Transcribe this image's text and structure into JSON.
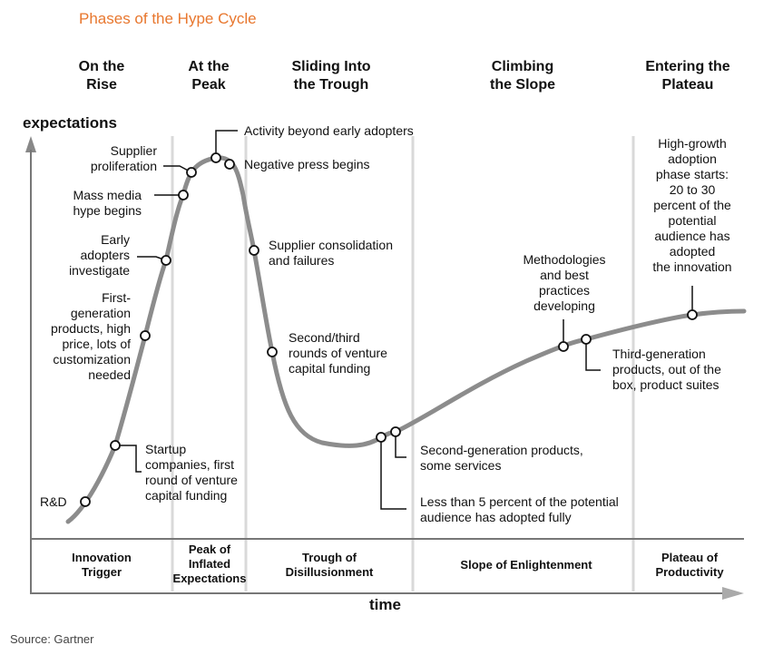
{
  "title": "Phases of the Hype Cycle",
  "axes": {
    "y_label": "expectations",
    "x_label": "time"
  },
  "phase_headers": [
    "On the\nRise",
    "At the\nPeak",
    "Sliding Into\nthe Trough",
    "Climbing\nthe Slope",
    "Entering the\nPlateau"
  ],
  "phase_names": [
    "Innovation\nTrigger",
    "Peak of\nInflated\nExpectations",
    "Trough of\nDisillusionment",
    "Slope of Enlightenment",
    "Plateau of\nProductivity"
  ],
  "annotations": {
    "rd": "R&D",
    "startup": "Startup\ncompanies, first\nround of venture\ncapital funding",
    "first_gen": "First-\ngeneration\nproducts, high\nprice, lots of\ncustomization\nneeded",
    "early_adopters": "Early\nadopters\ninvestigate",
    "mass_media": "Mass media\nhype begins",
    "supplier_prolif": "Supplier\nproliferation",
    "activity": "Activity beyond early adopters",
    "negative_press": "Negative press begins",
    "consolidation": "Supplier consolidation\nand failures",
    "second_third": "Second/third\nrounds of venture\ncapital funding",
    "second_gen": "Second-generation products,\nsome services",
    "less_than_5": "Less than 5 percent of the potential\naudience has adopted fully",
    "methodologies": "Methodologies\nand best\npractices\ndeveloping",
    "third_gen": "Third-generation\nproducts, out of the\nbox, product suites",
    "high_growth": "High-growth\nadoption\nphase starts:\n20 to 30\npercent of the\npotential\naudience has\nadopted\nthe innovation"
  },
  "source": "Source: Gartner",
  "colors": {
    "title": "#e8772e",
    "curve": "#8c8c8c",
    "divider": "#d9d9d9",
    "axis": "#777777"
  }
}
